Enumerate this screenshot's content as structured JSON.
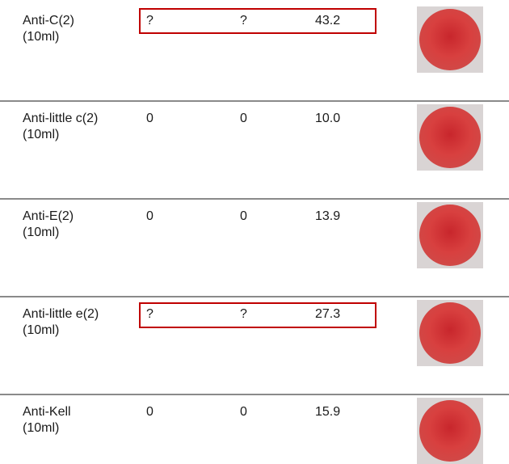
{
  "rows": [
    {
      "label": "Anti-C(2)",
      "volume": "(10ml)",
      "col1": "?",
      "col2": "?",
      "col3": "43.2"
    },
    {
      "label": "Anti-little c(2)",
      "volume": "(10ml)",
      "col1": "0",
      "col2": "0",
      "col3": "10.0"
    },
    {
      "label": "Anti-E(2)",
      "volume": "(10ml)",
      "col1": "0",
      "col2": "0",
      "col3": "13.9"
    },
    {
      "label": "Anti-little e(2)",
      "volume": "(10ml)",
      "col1": "?",
      "col2": "?",
      "col3": "27.3"
    },
    {
      "label": "Anti-Kell",
      "volume": "(10ml)",
      "col1": "0",
      "col2": "0",
      "col3": "15.9"
    }
  ]
}
